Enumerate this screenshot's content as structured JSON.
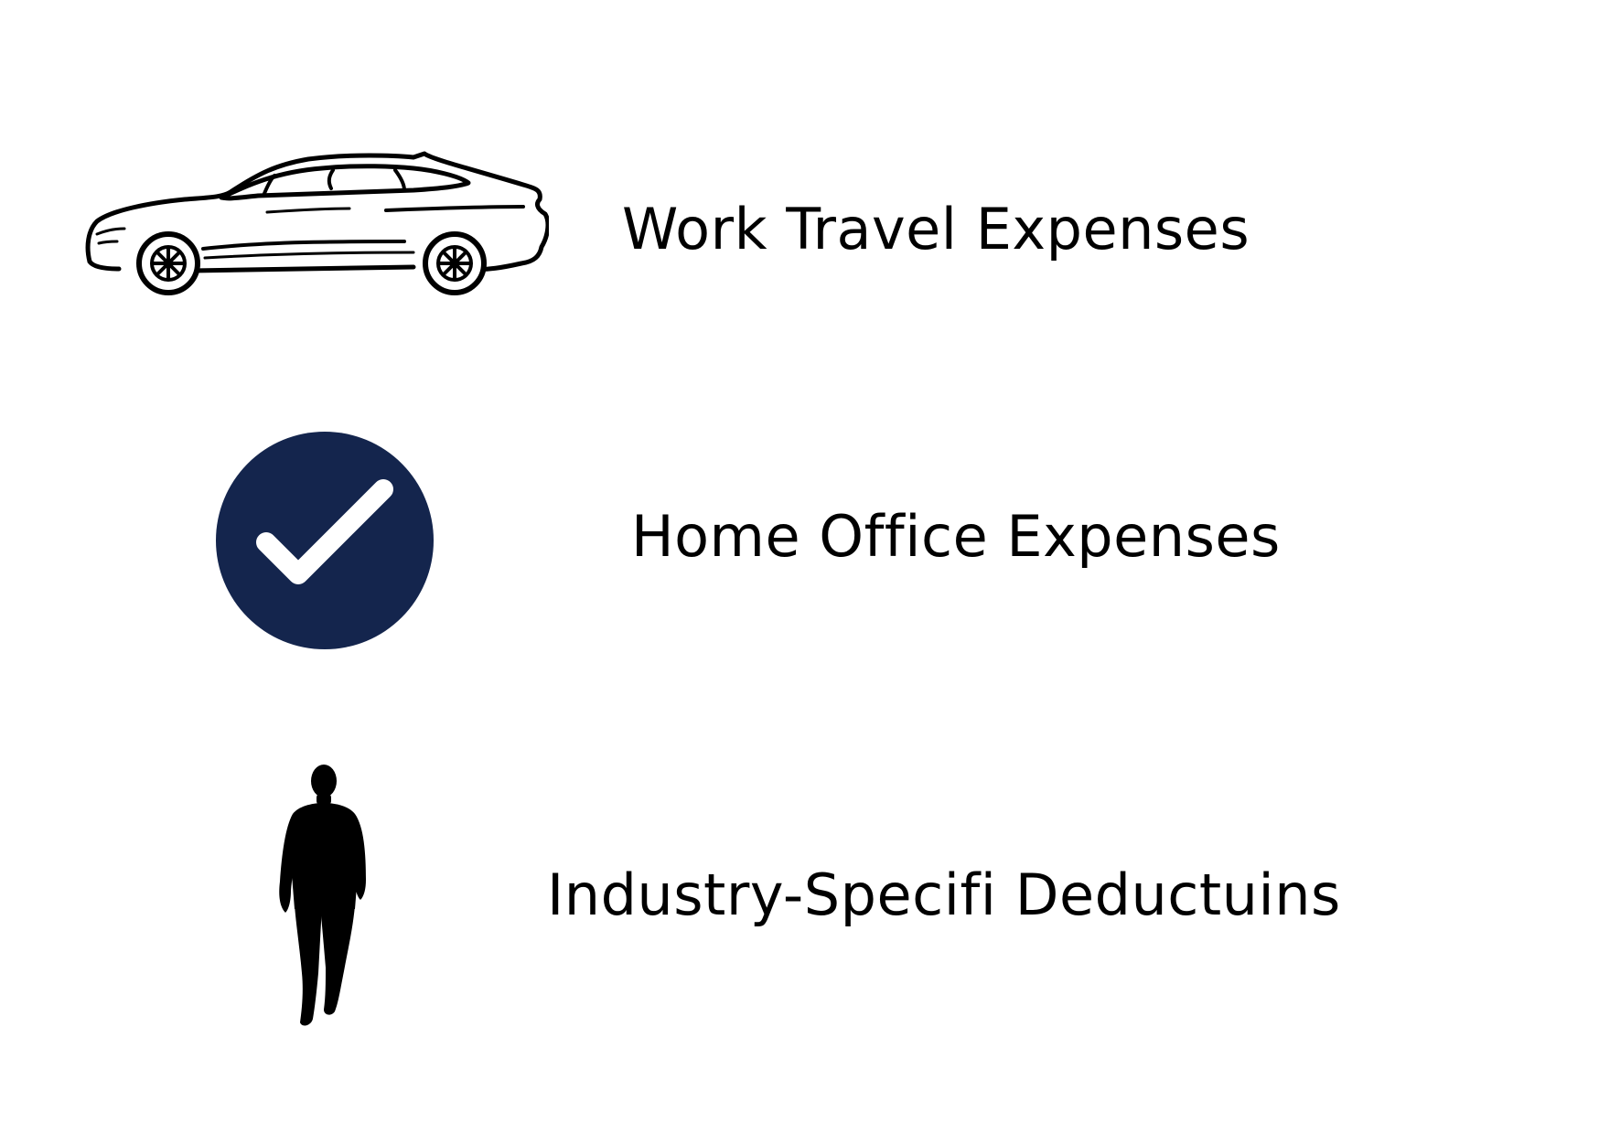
{
  "items": [
    {
      "label": "Work Travel Expenses",
      "icon": "car-icon"
    },
    {
      "label": "Home Office Expenses",
      "icon": "check-circle-icon"
    },
    {
      "label": "Industry-Specifi Deductuins",
      "icon": "walking-person-icon"
    }
  ],
  "colors": {
    "background": "#ffffff",
    "text": "#000000",
    "check_circle": "#14254d",
    "check_mark": "#ffffff"
  }
}
